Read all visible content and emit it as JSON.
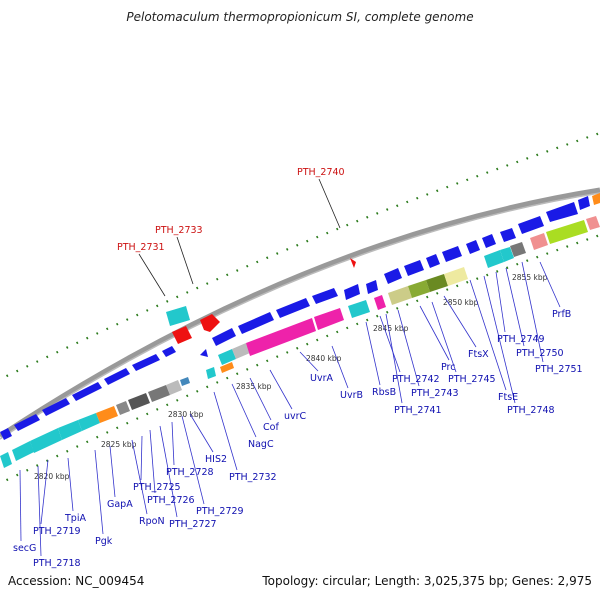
{
  "title": "Pelotomaculum thermopropionicum SI, complete genome",
  "footer": {
    "accession": "Accession: NC_009454",
    "topology": "Topology: circular; Length: 3,025,375 bp; Genes: 2,975"
  },
  "colors": {
    "label_blue": "#1010b0",
    "label_red": "#cc1111",
    "backbone": "#9a9a9a",
    "tick_green": "#2a7a1a",
    "gene_blue": "#1a1ae6",
    "gene_cyan": "#22c8cc",
    "gene_magenta": "#ee22aa",
    "gene_orange": "#ff8c1a",
    "gene_red": "#ee1111"
  },
  "scale_labels": [
    "2820 kbp",
    "2825 kbp",
    "2830 kbp",
    "2835 kbp",
    "2840 kbp",
    "2845 kbp",
    "2850 kbp",
    "2855 kbp"
  ],
  "gene_labels_blue": [
    "secG",
    "PTH_2718",
    "PTH_2719",
    "TpiA",
    "Pgk",
    "GapA",
    "RpoN",
    "PTH_2725",
    "PTH_2726",
    "PTH_2727",
    "PTH_2728",
    "PTH_2729",
    "HIS2",
    "PTH_2732",
    "NagC",
    "Cof",
    "uvrC",
    "UvrA",
    "UvrB",
    "RbsB",
    "PTH_2742",
    "PTH_2741",
    "PTH_2743",
    "Prc",
    "PTH_2745",
    "FtsX",
    "FtsE",
    "PTH_2748",
    "PTH_2749",
    "PTH_2750",
    "PTH_2751",
    "PrfB"
  ],
  "gene_labels_red": [
    "PTH_2731",
    "PTH_2733",
    "PTH_2740"
  ]
}
